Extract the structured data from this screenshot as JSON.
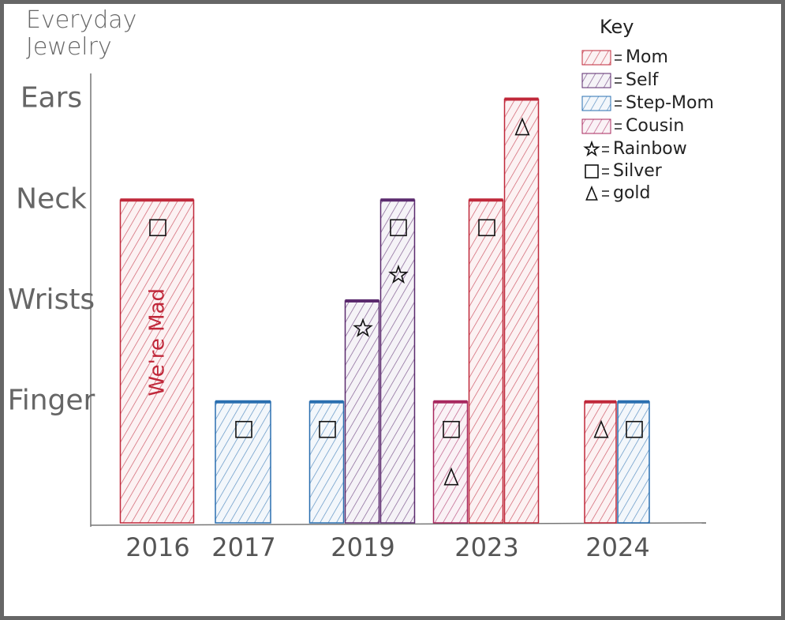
{
  "chart_data": {
    "type": "bar",
    "title": "Everyday Jewelry",
    "legend_title": "Key",
    "legend": "top-right",
    "ylim": [
      -0.2,
      4.2
    ],
    "yticks": [
      {
        "value": 1,
        "label": "Finger"
      },
      {
        "value": 2,
        "label": "Wrists"
      },
      {
        "value": 3,
        "label": "Neck"
      },
      {
        "value": 4,
        "label": "Ears"
      }
    ],
    "series": [
      {
        "name": "Mom",
        "color": "#c0283a"
      },
      {
        "name": "Self",
        "color": "#5b2a6e"
      },
      {
        "name": "Step-Mom",
        "color": "#2a6fb0"
      },
      {
        "name": "Cousin",
        "color": "#a8285e"
      }
    ],
    "materials": [
      {
        "name": "Rainbow",
        "symbol": "star"
      },
      {
        "name": "Silver",
        "symbol": "square"
      },
      {
        "name": "gold",
        "symbol": "triangle"
      }
    ],
    "groups": [
      {
        "label": "2016",
        "bars": [
          {
            "series": "Mom",
            "value": 3,
            "materials": [
              "Silver"
            ],
            "annotation": "We're Mad"
          }
        ]
      },
      {
        "label": "2017",
        "bars": [
          {
            "series": "Step-Mom",
            "value": 1,
            "materials": [
              "Silver"
            ]
          }
        ]
      },
      {
        "label": "2019",
        "bars": [
          {
            "series": "Step-Mom",
            "value": 1,
            "materials": [
              "Silver"
            ]
          },
          {
            "series": "Self",
            "value": 2,
            "materials": [
              "Rainbow"
            ]
          },
          {
            "series": "Self",
            "value": 3,
            "materials": [
              "Silver",
              "Rainbow"
            ]
          }
        ]
      },
      {
        "label": "2023",
        "bars": [
          {
            "series": "Cousin",
            "value": 1,
            "materials": [
              "Silver",
              "gold"
            ]
          },
          {
            "series": "Mom",
            "value": 3,
            "materials": [
              "Silver"
            ]
          },
          {
            "series": "Mom",
            "value": 4,
            "materials": [
              "gold"
            ]
          }
        ]
      },
      {
        "label": "2024",
        "bars": [
          {
            "series": "Mom",
            "value": 1,
            "materials": [
              "gold"
            ]
          },
          {
            "series": "Step-Mom",
            "value": 1,
            "materials": [
              "Silver"
            ]
          }
        ]
      }
    ]
  }
}
